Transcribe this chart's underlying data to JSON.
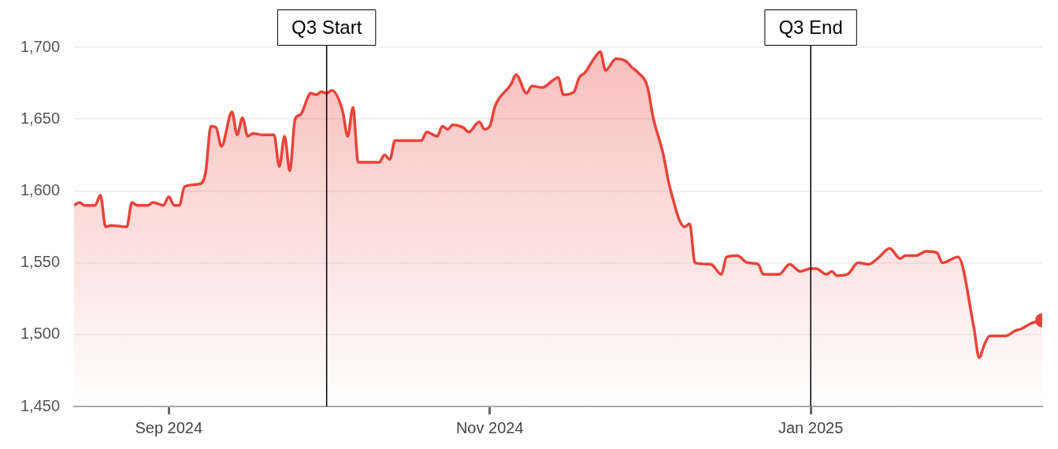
{
  "chart_data": {
    "type": "area",
    "x": [
      "2024-08-14",
      "2024-08-15",
      "2024-08-16",
      "2024-08-18",
      "2024-08-19",
      "2024-08-20",
      "2024-08-21",
      "2024-08-24",
      "2024-08-25",
      "2024-08-26",
      "2024-08-28",
      "2024-08-29",
      "2024-08-31",
      "2024-09-01",
      "2024-09-02",
      "2024-09-03",
      "2024-09-04",
      "2024-09-07",
      "2024-09-08",
      "2024-09-09",
      "2024-09-10",
      "2024-09-11",
      "2024-09-13",
      "2024-09-14",
      "2024-09-15",
      "2024-09-16",
      "2024-09-17",
      "2024-09-19",
      "2024-09-21",
      "2024-09-22",
      "2024-09-23",
      "2024-09-24",
      "2024-09-25",
      "2024-09-26",
      "2024-09-28",
      "2024-09-29",
      "2024-09-30",
      "2024-10-01",
      "2024-10-02",
      "2024-10-04",
      "2024-10-05",
      "2024-10-06",
      "2024-10-07",
      "2024-10-11",
      "2024-10-12",
      "2024-10-13",
      "2024-10-14",
      "2024-10-19",
      "2024-10-20",
      "2024-10-22",
      "2024-10-23",
      "2024-10-24",
      "2024-10-25",
      "2024-10-27",
      "2024-10-28",
      "2024-10-30",
      "2024-10-31",
      "2024-11-01",
      "2024-11-02",
      "2024-11-05",
      "2024-11-06",
      "2024-11-08",
      "2024-11-09",
      "2024-11-11",
      "2024-11-13",
      "2024-11-14",
      "2024-11-15",
      "2024-11-17",
      "2024-11-18",
      "2024-11-19",
      "2024-11-21",
      "2024-11-22",
      "2024-11-23",
      "2024-11-25",
      "2024-11-27",
      "2024-11-28",
      "2024-11-29",
      "2024-12-01",
      "2024-12-02",
      "2024-12-04",
      "2024-12-05",
      "2024-12-06",
      "2024-12-07",
      "2024-12-08",
      "2024-12-09",
      "2024-12-10",
      "2024-12-13",
      "2024-12-15",
      "2024-12-16",
      "2024-12-18",
      "2024-12-20",
      "2024-12-22",
      "2024-12-23",
      "2024-12-26",
      "2024-12-28",
      "2024-12-30",
      "2025-01-01",
      "2025-01-02",
      "2025-01-04",
      "2025-01-05",
      "2025-01-06",
      "2025-01-08",
      "2025-01-10",
      "2025-01-12",
      "2025-01-14",
      "2025-01-16",
      "2025-01-18",
      "2025-01-19",
      "2025-01-21",
      "2025-01-23",
      "2025-01-25",
      "2025-01-26",
      "2025-01-29",
      "2025-02-01",
      "2025-02-02",
      "2025-02-03",
      "2025-02-04",
      "2025-02-07",
      "2025-02-09",
      "2025-02-10",
      "2025-02-12",
      "2025-02-14"
    ],
    "series": [
      {
        "color": "#e8433a",
        "values": [
          1590,
          1592,
          1590,
          1590,
          1597,
          1575,
          1576,
          1575,
          1592,
          1590,
          1590,
          1592,
          1590,
          1596,
          1590,
          1590,
          1603,
          1605,
          1613,
          1645,
          1644,
          1631,
          1655,
          1639,
          1651,
          1638,
          1640,
          1639,
          1639,
          1617,
          1638,
          1614,
          1650,
          1653,
          1668,
          1667,
          1669,
          1668,
          1670,
          1656,
          1638,
          1658,
          1620,
          1620,
          1625,
          1622,
          1635,
          1635,
          1641,
          1638,
          1645,
          1643,
          1646,
          1644,
          1641,
          1648,
          1643,
          1645,
          1659,
          1674,
          1681,
          1668,
          1673,
          1672,
          1677,
          1679,
          1667,
          1669,
          1679,
          1682,
          1693,
          1697,
          1684,
          1692,
          1690,
          1686,
          1683,
          1672,
          1652,
          1625,
          1606,
          1592,
          1580,
          1575,
          1577,
          1550,
          1549,
          1542,
          1554,
          1555,
          1550,
          1549,
          1542,
          1542,
          1549,
          1544,
          1546,
          1546,
          1542,
          1544,
          1541,
          1542,
          1550,
          1549,
          1554,
          1560,
          1553,
          1555,
          1555,
          1558,
          1557,
          1550,
          1554,
          1505,
          1484,
          1493,
          1499,
          1499,
          1503,
          1504,
          1508,
          1510
        ]
      }
    ],
    "xlim": [
      "2024-08-14",
      "2025-02-14"
    ],
    "xticks": [
      {
        "value": "2024-09-01",
        "label": "Sep 2024"
      },
      {
        "value": "2024-11-01",
        "label": "Nov 2024"
      },
      {
        "value": "2025-01-01",
        "label": "Jan 2025"
      }
    ],
    "ylim": [
      1450,
      1700
    ],
    "yticks": [
      {
        "value": 1450,
        "label": "1,450"
      },
      {
        "value": 1500,
        "label": "1,500"
      },
      {
        "value": 1550,
        "label": "1,550"
      },
      {
        "value": 1600,
        "label": "1,600"
      },
      {
        "value": 1650,
        "label": "1,650"
      },
      {
        "value": 1700,
        "label": "1,700"
      }
    ],
    "ref_lines": [
      {
        "axis": "x",
        "value": "2024-10-01",
        "label": "Q3 Start",
        "color": "#000000"
      },
      {
        "axis": "x",
        "value": "2025-01-01",
        "label": "Q3 End",
        "color": "#000000"
      }
    ],
    "grid": "y",
    "legend": false,
    "marker": "none",
    "line_style": "solid"
  }
}
